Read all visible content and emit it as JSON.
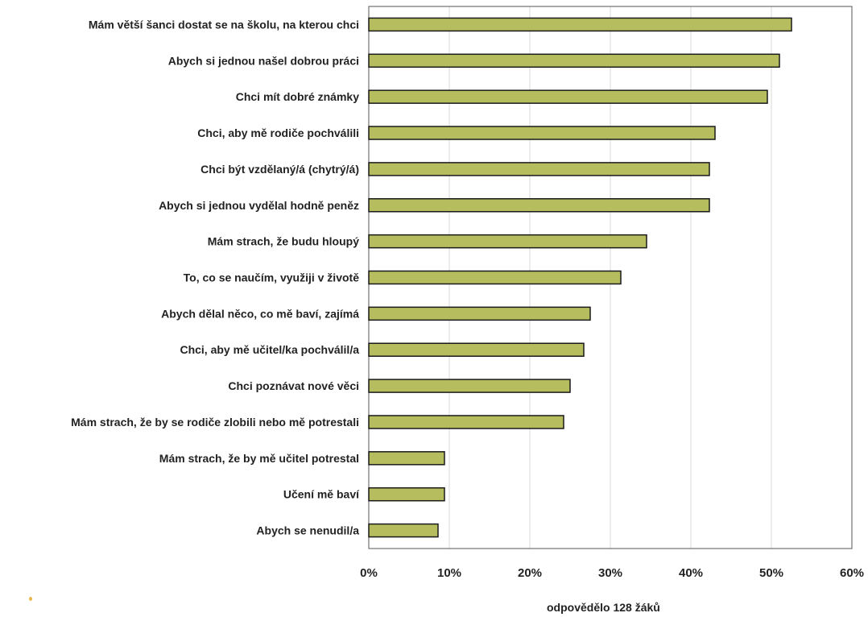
{
  "chart_data": {
    "type": "bar",
    "orientation": "horizontal",
    "categories": [
      "Mám větší šanci dostat se na školu, na kterou chci",
      "Abych si jednou našel dobrou práci",
      "Chci mít dobré známky",
      "Chci, aby mě rodiče pochválili",
      "Chci být vzdělaný/á (chytrý/á)",
      "Abych si jednou vydělal hodně peněz",
      "Mám strach, že budu hloupý",
      "To, co se naučím, využiji v životě",
      "Abych dělal něco, co mě baví, zajímá",
      "Chci, aby mě učitel/ka pochválil/a",
      "Chci poznávat nové věci",
      "Mám strach, že by se rodiče zlobili nebo mě potrestali",
      "Mám strach, že by mě učitel potrestal",
      "Učení mě baví",
      "Abych se nenudil/a"
    ],
    "values": [
      52.5,
      51,
      49.5,
      43,
      42.3,
      42.3,
      34.5,
      31.3,
      27.5,
      26.7,
      25,
      24.2,
      9.4,
      9.4,
      8.6
    ],
    "xlim": [
      0,
      60
    ],
    "x_ticks": [
      "0%",
      "10%",
      "20%",
      "30%",
      "40%",
      "50%",
      "60%"
    ],
    "grid": "vertical",
    "bar_color": "#b5bd5e",
    "note": "odpovědělo 128 žáků"
  }
}
